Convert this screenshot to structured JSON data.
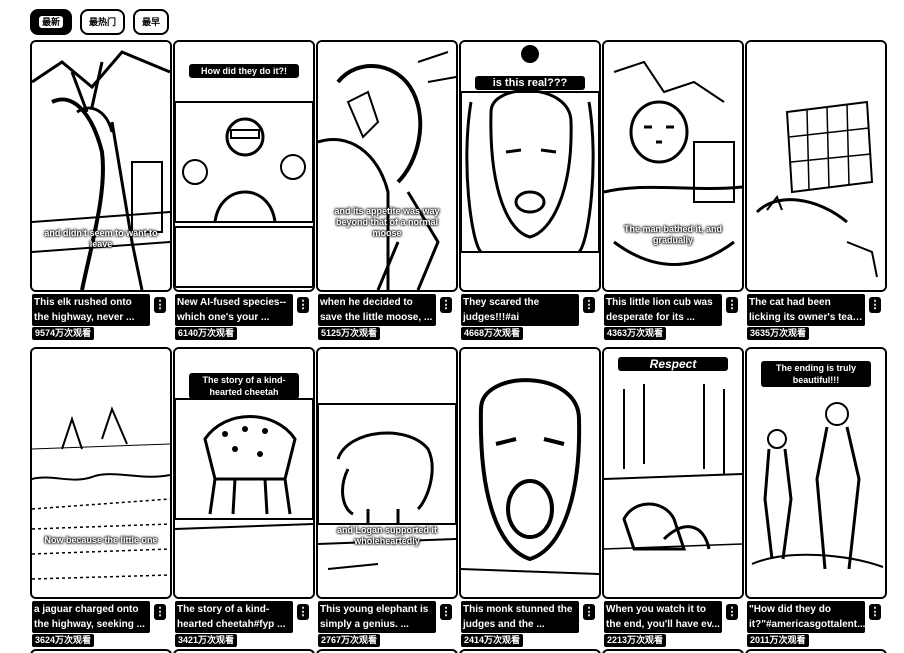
{
  "filters": [
    {
      "label": "最新",
      "active": true
    },
    {
      "label": "最热门",
      "active": false
    },
    {
      "label": "最早",
      "active": false
    }
  ],
  "more_label": "⋮",
  "videos": [
    {
      "title": "This elk rushed onto the highway, never ...",
      "views": "9574万次观看",
      "caption": "and didn't seem to want to leave",
      "banner": ""
    },
    {
      "title": "New AI-fused species-- which one's your ...",
      "views": "6140万次观看",
      "caption": "",
      "banner": "How did they do it?!"
    },
    {
      "title": "when he decided to save the little moose, ...",
      "views": "5125万次观看",
      "caption": "and its appetite was way beyond that of a normal moose",
      "banner": ""
    },
    {
      "title": "They scared the judges!!!#ai",
      "views": "4668万次观看",
      "caption": "",
      "banner": "is this real???"
    },
    {
      "title": "This little lion cub was desperate for its ...",
      "views": "4363万次观看",
      "caption": "The man bathed it, and gradually",
      "banner": ""
    },
    {
      "title": "The cat had been licking its owner's tears for ha...",
      "views": "3635万次观看",
      "caption": "",
      "banner": ""
    },
    {
      "title": "a jaguar charged onto the highway, seeking ...",
      "views": "3624万次观看",
      "caption": "Now because the little one",
      "banner": ""
    },
    {
      "title": "The story of a kind-hearted cheetah#fyp ...",
      "views": "3421万次观看",
      "caption": "",
      "banner": "The story of a kind-hearted cheetah"
    },
    {
      "title": "This young elephant is simply a genius. ...",
      "views": "2767万次观看",
      "caption": "and Logan supported it wholeheartedly",
      "banner": ""
    },
    {
      "title": "This monk stunned the judges and the ...",
      "views": "2414万次观看",
      "caption": "",
      "banner": ""
    },
    {
      "title": "When you watch it to the end, you'll have ev...",
      "views": "2213万次观看",
      "caption": "",
      "banner": "Respect"
    },
    {
      "title": "\"How did they do it?\"#americasgottalent...",
      "views": "2011万次观看",
      "caption": "",
      "banner": "The ending is truly beautiful!!!"
    }
  ]
}
